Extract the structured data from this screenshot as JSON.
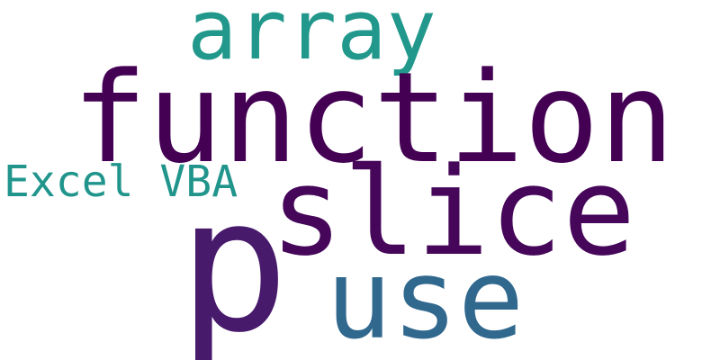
{
  "words": {
    "array": {
      "text": "array",
      "color": "#21988b"
    },
    "function": {
      "text": "function",
      "color": "#440154"
    },
    "excel": {
      "text": "Excel VBA",
      "color": "#21958c"
    },
    "slice": {
      "text": "slice",
      "color": "#46075a"
    },
    "p": {
      "text": "p",
      "color": "#481a6c"
    },
    "use": {
      "text": "use",
      "color": "#31688e"
    }
  }
}
